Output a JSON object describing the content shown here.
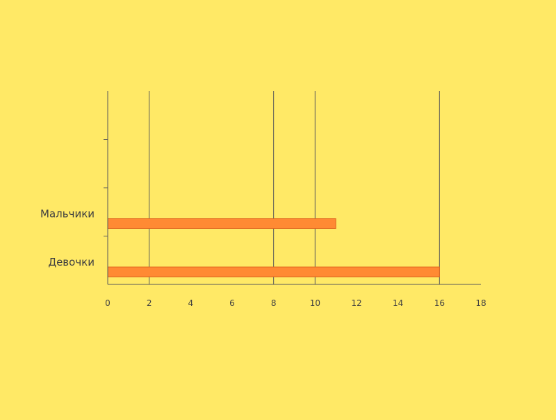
{
  "chart_data": {
    "type": "bar",
    "orientation": "horizontal",
    "categories": [
      "Девочки",
      "Мальчики",
      "",
      ""
    ],
    "values": [
      16,
      11,
      null,
      null
    ],
    "title": "",
    "xlabel": "",
    "ylabel": "",
    "xlim": [
      0,
      18
    ],
    "x_ticks": [
      "0",
      "2",
      "4",
      "6",
      "8",
      "10",
      "12",
      "14",
      "16",
      "18"
    ],
    "gridlines_at": [
      2,
      8,
      10,
      16
    ],
    "legend": "none",
    "colors": {
      "background": "#FFE966",
      "bar_fill": "#FF8A33",
      "bar_stroke": "#E0641E",
      "axis": "#595959",
      "text": "#404040"
    }
  }
}
